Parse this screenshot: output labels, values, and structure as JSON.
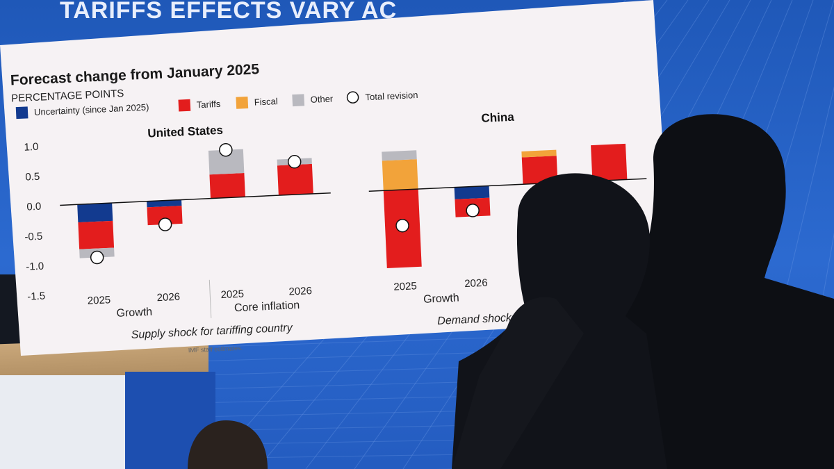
{
  "banner": {
    "title": "TARIFFS EFFECTS VARY AC"
  },
  "chart_data": {
    "type": "bar",
    "title": "Forecast change from January 2025",
    "ylabel": "PERCENTAGE POINTS",
    "ylim": [
      -1.5,
      1.0
    ],
    "yticks": [
      "1.0",
      "0.5",
      "0.0",
      "-0.5",
      "-1.0",
      "-1.5"
    ],
    "legend": [
      {
        "key": "uncertainty",
        "label": "Uncertainty (since Jan 2025)",
        "color": "#123a8f",
        "marker": "square"
      },
      {
        "key": "tariffs",
        "label": "Tariffs",
        "color": "#e31d1d",
        "marker": "square"
      },
      {
        "key": "fiscal",
        "label": "Fiscal",
        "color": "#f2a33a",
        "marker": "square"
      },
      {
        "key": "other",
        "label": "Other",
        "color": "#b9b9bf",
        "marker": "square"
      },
      {
        "key": "total",
        "label": "Total revision",
        "color": "#ffffff",
        "marker": "circle"
      }
    ],
    "legend_placement": "top-left",
    "panels": [
      {
        "title": "United States",
        "subtitle": "Supply shock for tariffing country",
        "groups": [
          {
            "label": "Growth",
            "years": [
              "2025",
              "2026"
            ]
          },
          {
            "label": "Core inflation",
            "years": [
              "2025",
              "2026"
            ]
          }
        ],
        "bars": [
          {
            "group": "Growth",
            "year": "2025",
            "uncertainty": -0.3,
            "tariffs": -0.45,
            "fiscal": 0,
            "other": -0.15,
            "total": -0.9
          },
          {
            "group": "Growth",
            "year": "2026",
            "uncertainty": -0.1,
            "tariffs": -0.3,
            "fiscal": 0,
            "other": 0,
            "total": -0.4
          },
          {
            "group": "Core inflation",
            "year": "2025",
            "uncertainty": 0,
            "tariffs": 0.4,
            "fiscal": 0,
            "other": 0.4,
            "total": 0.8
          },
          {
            "group": "Core inflation",
            "year": "2026",
            "uncertainty": 0,
            "tariffs": 0.5,
            "fiscal": 0,
            "other": 0.1,
            "total": 0.55
          }
        ]
      },
      {
        "title": "China",
        "subtitle": "Demand shock for t",
        "groups": [
          {
            "label": "Growth",
            "years": [
              "2025",
              "2026"
            ]
          },
          {
            "label": "",
            "years": [
              "",
              ""
            ]
          }
        ],
        "bars": [
          {
            "group": "Growth",
            "year": "2025",
            "uncertainty": 0,
            "tariffs": -1.3,
            "fiscal": 0.5,
            "other": 0.15,
            "total": -0.6
          },
          {
            "group": "Growth",
            "year": "2026",
            "uncertainty": -0.2,
            "tariffs": -0.3,
            "fiscal": 0,
            "other": 0,
            "total": -0.4
          },
          {
            "group": "",
            "year": "",
            "uncertainty": 0,
            "tariffs": 0.45,
            "fiscal": 0.1,
            "other": 0,
            "total": null
          },
          {
            "group": "",
            "year": "",
            "uncertainty": 0,
            "tariffs": 0.6,
            "fiscal": 0,
            "other": 0,
            "total": null
          }
        ]
      }
    ],
    "source": "IMF staff estimates."
  }
}
